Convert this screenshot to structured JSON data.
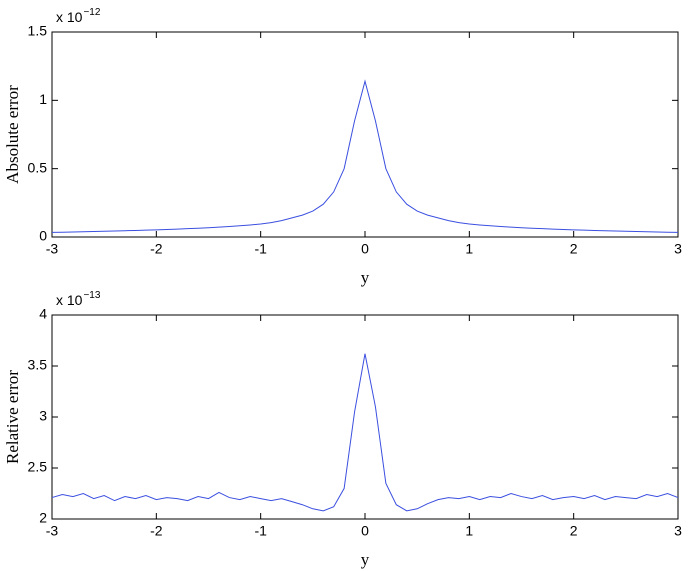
{
  "chart_data": [
    {
      "type": "line",
      "ylabel": "Absolute error",
      "xlabel": "y",
      "multiplier": "x 10",
      "exponent": "−12",
      "x": [
        -3,
        -2.9,
        -2.8,
        -2.7,
        -2.6,
        -2.5,
        -2.4,
        -2.3,
        -2.2,
        -2.1,
        -2,
        -1.9,
        -1.8,
        -1.7,
        -1.6,
        -1.5,
        -1.4,
        -1.3,
        -1.2,
        -1.1,
        -1,
        -0.9,
        -0.8,
        -0.7,
        -0.6,
        -0.5,
        -0.4,
        -0.3,
        -0.2,
        -0.1,
        0,
        0.1,
        0.2,
        0.3,
        0.4,
        0.5,
        0.6,
        0.7,
        0.8,
        0.9,
        1,
        1.1,
        1.2,
        1.3,
        1.4,
        1.5,
        1.6,
        1.7,
        1.8,
        1.9,
        2,
        2.1,
        2.2,
        2.3,
        2.4,
        2.5,
        2.6,
        2.7,
        2.8,
        2.9,
        3
      ],
      "series": [
        {
          "color": "#3b4fe0",
          "values": [
            0.034,
            0.035,
            0.037,
            0.038,
            0.04,
            0.042,
            0.044,
            0.046,
            0.048,
            0.05,
            0.052,
            0.055,
            0.058,
            0.061,
            0.064,
            0.068,
            0.072,
            0.077,
            0.082,
            0.088,
            0.095,
            0.105,
            0.12,
            0.14,
            0.16,
            0.19,
            0.24,
            0.33,
            0.5,
            0.85,
            1.14,
            0.85,
            0.5,
            0.33,
            0.24,
            0.19,
            0.16,
            0.14,
            0.12,
            0.105,
            0.095,
            0.088,
            0.082,
            0.077,
            0.072,
            0.068,
            0.064,
            0.061,
            0.058,
            0.055,
            0.052,
            0.05,
            0.048,
            0.046,
            0.044,
            0.042,
            0.04,
            0.038,
            0.037,
            0.035,
            0.034
          ]
        }
      ],
      "xlim": [
        -3,
        3
      ],
      "ylim": [
        0,
        1.5
      ],
      "xticks": [
        -3,
        -2,
        -1,
        0,
        1,
        2,
        3
      ],
      "yticks": [
        0,
        0.5,
        1,
        1.5
      ]
    },
    {
      "type": "line",
      "ylabel": "Relative error",
      "xlabel": "y",
      "multiplier": "x 10",
      "exponent": "−13",
      "x": [
        -3,
        -2.9,
        -2.8,
        -2.7,
        -2.6,
        -2.5,
        -2.4,
        -2.3,
        -2.2,
        -2.1,
        -2,
        -1.9,
        -1.8,
        -1.7,
        -1.6,
        -1.5,
        -1.4,
        -1.3,
        -1.2,
        -1.1,
        -1,
        -0.9,
        -0.8,
        -0.7,
        -0.6,
        -0.5,
        -0.4,
        -0.3,
        -0.2,
        -0.1,
        0,
        0.1,
        0.2,
        0.3,
        0.4,
        0.5,
        0.6,
        0.7,
        0.8,
        0.9,
        1,
        1.1,
        1.2,
        1.3,
        1.4,
        1.5,
        1.6,
        1.7,
        1.8,
        1.9,
        2,
        2.1,
        2.2,
        2.3,
        2.4,
        2.5,
        2.6,
        2.7,
        2.8,
        2.9,
        3
      ],
      "series": [
        {
          "color": "#3b4fe0",
          "values": [
            2.21,
            2.24,
            2.22,
            2.25,
            2.2,
            2.23,
            2.18,
            2.22,
            2.2,
            2.23,
            2.19,
            2.21,
            2.2,
            2.18,
            2.22,
            2.2,
            2.26,
            2.21,
            2.19,
            2.22,
            2.2,
            2.18,
            2.2,
            2.17,
            2.14,
            2.1,
            2.08,
            2.12,
            2.3,
            3.05,
            3.62,
            3.1,
            2.35,
            2.14,
            2.08,
            2.1,
            2.15,
            2.19,
            2.21,
            2.2,
            2.22,
            2.19,
            2.22,
            2.21,
            2.25,
            2.22,
            2.2,
            2.23,
            2.19,
            2.21,
            2.22,
            2.2,
            2.23,
            2.19,
            2.22,
            2.21,
            2.2,
            2.24,
            2.22,
            2.25,
            2.21
          ]
        }
      ],
      "xlim": [
        -3,
        3
      ],
      "ylim": [
        2,
        4
      ],
      "xticks": [
        -3,
        -2,
        -1,
        0,
        1,
        2,
        3
      ],
      "yticks": [
        2,
        2.5,
        3,
        3.5,
        4
      ]
    }
  ]
}
